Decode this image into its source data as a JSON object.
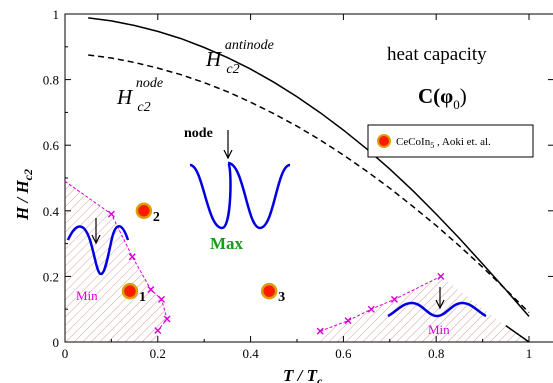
{
  "chart_data": {
    "type": "line",
    "title": "",
    "xlabel": {
      "base": "T / T",
      "sub": "c"
    },
    "ylabel": {
      "base": "H / H",
      "sub": "c2"
    },
    "xlim": [
      0,
      1
    ],
    "ylim": [
      0,
      1
    ],
    "x_ticks": [
      0,
      0.2,
      0.4,
      0.6,
      0.8,
      1
    ],
    "x_tick_labels": [
      "0",
      "0.2",
      "0.4",
      "0.6",
      "0.8",
      "1"
    ],
    "y_ticks": [
      0,
      0.2,
      0.4,
      0.6,
      0.8,
      1
    ],
    "y_tick_labels": [
      "0",
      "0.2",
      "0.4",
      "0.6",
      "0.8",
      "1"
    ],
    "grid": false,
    "series": [
      {
        "name": "antinode",
        "style": "solid",
        "color": "#000000",
        "x": [
          0.05,
          0.1,
          0.15,
          0.2,
          0.25,
          0.3,
          0.35,
          0.4,
          0.45,
          0.5,
          0.55,
          0.6,
          0.65,
          0.7,
          0.75,
          0.8,
          0.85,
          0.9,
          0.95,
          1.0
        ],
        "y": [
          0.988,
          0.979,
          0.965,
          0.947,
          0.925,
          0.898,
          0.867,
          0.832,
          0.792,
          0.748,
          0.699,
          0.646,
          0.589,
          0.527,
          0.461,
          0.39,
          0.316,
          0.238,
          0.159,
          0.078
        ]
      },
      {
        "name": "node",
        "style": "dashed",
        "color": "#000000",
        "x": [
          0.05,
          0.1,
          0.15,
          0.2,
          0.25,
          0.3,
          0.35,
          0.4,
          0.45,
          0.5,
          0.55,
          0.6,
          0.65,
          0.7,
          0.75,
          0.8,
          0.85,
          0.9,
          0.95,
          1.0
        ],
        "y": [
          0.875,
          0.866,
          0.852,
          0.835,
          0.815,
          0.791,
          0.763,
          0.731,
          0.696,
          0.658,
          0.616,
          0.57,
          0.521,
          0.469,
          0.413,
          0.355,
          0.293,
          0.228,
          0.16,
          0.09
        ]
      }
    ],
    "curve_labels": [
      {
        "series": "antinode",
        "base": "H",
        "sub": "c2",
        "sup": "antinode"
      },
      {
        "series": "node",
        "base": "H",
        "sub": "c2",
        "sup": "node"
      }
    ],
    "extra_curve_tail": {
      "x": [
        0.95,
        1.0
      ],
      "y": [
        0.05,
        0.0
      ]
    },
    "min_region_left": {
      "color": "#d800d8",
      "x": [
        0.0,
        0.1,
        0.145,
        0.185,
        0.208,
        0.22,
        0.2
      ],
      "y": [
        0.49,
        0.39,
        0.26,
        0.16,
        0.13,
        0.07,
        0.035
      ]
    },
    "min_region_right": {
      "color": "#d800d8",
      "x": [
        0.55,
        0.61,
        0.66,
        0.71,
        0.81
      ],
      "y": [
        0.033,
        0.065,
        0.1,
        0.13,
        0.2
      ]
    },
    "data_points": [
      {
        "label": "1",
        "x": 0.14,
        "y": 0.155
      },
      {
        "label": "2",
        "x": 0.17,
        "y": 0.4
      },
      {
        "label": "3",
        "x": 0.44,
        "y": 0.155
      }
    ],
    "annotations": {
      "heat_capacity": "heat capacity",
      "c_phi": "C(φ",
      "c_phi_sub": "0",
      "c_phi_close": ")",
      "node_text": "node",
      "max_text": "Max",
      "min_left_text": "Min",
      "min_right_text": "Min"
    },
    "legend": {
      "placement": "right",
      "entries": [
        {
          "text": "CeCoIn",
          "sub": "5",
          "suffix": " ,  Aoki et. al."
        }
      ]
    },
    "colors": {
      "marker_fill": "#ff1a00",
      "marker_edge": "#d8a000",
      "wave": "#0000e0",
      "magenta": "#d800d8",
      "max_text": "#1a9a1a",
      "hatch": "#d8a0a0"
    }
  }
}
